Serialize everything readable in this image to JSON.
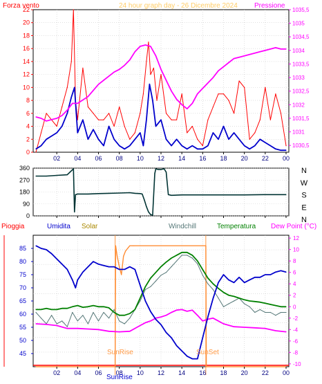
{
  "header": {
    "wind_label": "Forza vento",
    "title": "24 hour graph day - 26 Dicembre 2024",
    "pressure_label": "Pressione"
  },
  "bottom_header": {
    "rain": "Pioggia",
    "humidity": "Umidita",
    "solar": "Solar",
    "windchill": "Windchill",
    "temperature": "Temperatura",
    "dewpoint": "Dew Point (°C)"
  },
  "markers": {
    "sunrise": "SunRise",
    "sunset": "SunSet",
    "sunrise_tick": "SunRise"
  },
  "colors": {
    "wind": "#ff0000",
    "gust": "#0000cc",
    "pressure": "#ff00ff",
    "direction": "#003333",
    "humidity": "#0000cc",
    "solar": "#ff8c33",
    "windchill": "#557777",
    "temperature": "#008000",
    "dewpoint": "#ff00ff",
    "rain": "#ff0000"
  },
  "chart_data": [
    {
      "type": "line",
      "title": "24 hour graph day - 26 Dicembre 2024",
      "x_ticks": [
        "02",
        "04",
        "06",
        "08",
        "10",
        "12",
        "14",
        "16",
        "18",
        "20",
        "22",
        "00"
      ],
      "left_axis": {
        "label": "Forza vento",
        "ylim": [
          0,
          22
        ],
        "ticks": [
          "0",
          "2",
          "4",
          "6",
          "8",
          "10",
          "12",
          "14",
          "16",
          "18",
          "20",
          "22"
        ]
      },
      "right_axis": {
        "label": "Pressione",
        "ylim": [
          1030.25,
          1035.5
        ],
        "ticks": [
          "1030,5",
          "1031",
          "1031,5",
          "1032",
          "1032,5",
          "1033",
          "1033,5",
          "1034",
          "1034,5",
          "1035",
          "1035,5"
        ]
      },
      "series": [
        {
          "key": "wind",
          "axis": "left",
          "x": [
            0,
            0.5,
            1,
            1.5,
            2,
            2.5,
            3,
            3.4,
            3.6,
            3.8,
            4,
            4.5,
            5,
            5.5,
            6,
            6.5,
            7,
            7.5,
            8,
            8.5,
            9,
            9.5,
            10,
            10.3,
            10.6,
            10.8,
            11,
            11.3,
            11.6,
            12,
            12.5,
            13,
            13.5,
            14,
            14.5,
            15,
            15.5,
            16,
            16.5,
            17,
            17.5,
            18,
            18.5,
            19,
            19.5,
            20,
            20.5,
            21,
            21.5,
            22,
            22.5,
            23,
            23.5,
            24
          ],
          "values": [
            0,
            3,
            6,
            5,
            4,
            7,
            10,
            14,
            22,
            8,
            5,
            13,
            7,
            6,
            5,
            5,
            6,
            4,
            7,
            4,
            2,
            3,
            6,
            9,
            14,
            17,
            12,
            13,
            8,
            12,
            6,
            5,
            5,
            9,
            3,
            4,
            2,
            1,
            5,
            7,
            9,
            9,
            8,
            6,
            11,
            10,
            2,
            3,
            5,
            10,
            5,
            9,
            6,
            1
          ]
        },
        {
          "key": "gust",
          "axis": "left",
          "x": [
            0,
            0.5,
            1,
            1.5,
            2,
            2.5,
            3,
            3.4,
            3.7,
            4,
            4.5,
            5,
            5.5,
            6,
            6.5,
            7,
            7.5,
            8,
            8.5,
            9,
            9.5,
            10,
            10.3,
            10.6,
            10.9,
            11.2,
            11.5,
            12,
            12.5,
            13,
            13.5,
            14,
            14.5,
            15,
            15.5,
            16,
            16.5,
            17,
            17.5,
            18,
            18.5,
            19,
            19.5,
            20,
            20.5,
            21,
            21.5,
            22,
            22.5,
            23,
            23.5,
            24
          ],
          "values": [
            0.5,
            1,
            2,
            2.5,
            3,
            4,
            6,
            8.5,
            10,
            3,
            5,
            2,
            3.5,
            2,
            1,
            4,
            2,
            1,
            0.5,
            1,
            2,
            3,
            1,
            5,
            10.5,
            8,
            4,
            5,
            2,
            1,
            2,
            1,
            0.5,
            1,
            0.5,
            0.5,
            1,
            3,
            2,
            4,
            2,
            3,
            2,
            1,
            0.5,
            1,
            2,
            1.5,
            1,
            0.5,
            0.3,
            0.3
          ]
        },
        {
          "key": "pressure",
          "axis": "right",
          "x": [
            0,
            0.5,
            1,
            1.5,
            2,
            2.5,
            3,
            3.5,
            4,
            5,
            6,
            6.5,
            7,
            7.5,
            8,
            8.5,
            9,
            9.5,
            10,
            10.5,
            11,
            11.5,
            12,
            12.5,
            13,
            13.5,
            14,
            14.5,
            15,
            15.5,
            16,
            16.5,
            17,
            17.5,
            18,
            18.5,
            19,
            19.5,
            20,
            20.5,
            21,
            21.5,
            22,
            22.5,
            23,
            23.5,
            24
          ],
          "values": [
            1031.55,
            1031.5,
            1031.4,
            1031.45,
            1031.5,
            1031.6,
            1031.8,
            1032.05,
            1032.05,
            1032.3,
            1032.75,
            1032.9,
            1033.05,
            1033.2,
            1033.3,
            1033.45,
            1033.65,
            1033.95,
            1034.15,
            1034.2,
            1034.15,
            1033.8,
            1033.3,
            1032.9,
            1032.5,
            1032.2,
            1032.0,
            1031.85,
            1032.05,
            1032.4,
            1032.6,
            1032.8,
            1033.0,
            1033.25,
            1033.4,
            1033.55,
            1033.7,
            1033.75,
            1033.8,
            1033.85,
            1033.9,
            1033.95,
            1034.0,
            1034.05,
            1034.1,
            1034.05,
            1034.05
          ]
        }
      ]
    },
    {
      "type": "line",
      "title": "",
      "ylim": [
        0,
        360
      ],
      "y_ticks": [
        "0",
        "90",
        "180",
        "270",
        "360"
      ],
      "direction_labels": [
        "N",
        "W",
        "S",
        "E",
        "N"
      ],
      "series": [
        {
          "key": "direction",
          "x": [
            0,
            1,
            2,
            3,
            3.6,
            3.7,
            3.8,
            4,
            5,
            6,
            7,
            8,
            9,
            9.5,
            10,
            10.2,
            10.4,
            10.6,
            10.8,
            11,
            11.2,
            11.4,
            11.5,
            11.7,
            12,
            12.3,
            12.5,
            12.7,
            13,
            14,
            16,
            18,
            20,
            22,
            24
          ],
          "values": [
            300,
            300,
            305,
            310,
            355,
            30,
            160,
            165,
            165,
            168,
            170,
            172,
            175,
            170,
            168,
            165,
            120,
            70,
            30,
            10,
            5,
            320,
            355,
            350,
            350,
            355,
            330,
            160,
            155,
            158,
            158,
            158,
            158,
            160,
            160
          ]
        }
      ]
    },
    {
      "type": "line",
      "title": "",
      "x_ticks": [
        "02",
        "04",
        "06",
        "08",
        "10",
        "12",
        "14",
        "16",
        "18",
        "20",
        "22",
        "00"
      ],
      "left_axis": {
        "label": "Umidita",
        "ylim": [
          40,
          90
        ],
        "ticks": [
          "45",
          "50",
          "55",
          "60",
          "65",
          "70",
          "75",
          "80",
          "85"
        ]
      },
      "right_axis": {
        "label": "Dew Point (°C)",
        "ylim": [
          -10.5,
          12.5
        ],
        "ticks": [
          "-10",
          "-8",
          "-6",
          "-4",
          "-2",
          "0",
          "2",
          "4",
          "6",
          "8",
          "10",
          "12"
        ]
      },
      "series": [
        {
          "key": "humidity",
          "axis": "left",
          "x": [
            0,
            0.5,
            1,
            1.5,
            2,
            2.5,
            3,
            3.5,
            3.8,
            4,
            4.5,
            5,
            5.5,
            6,
            6.5,
            7,
            7.5,
            8,
            8.5,
            9,
            9.5,
            10,
            10.5,
            11,
            11.5,
            12,
            12.5,
            13,
            13.5,
            14,
            14.5,
            15,
            15.5,
            16,
            16.5,
            17,
            17.5,
            18,
            18.5,
            19,
            19.5,
            20,
            20.5,
            21,
            21.5,
            22,
            22.5,
            23,
            23.5,
            24
          ],
          "values": [
            86,
            85,
            84.5,
            83,
            81,
            79,
            77,
            73,
            70,
            73,
            76,
            78,
            80,
            79,
            78.5,
            78,
            78,
            77,
            77,
            78,
            77,
            71,
            65,
            61,
            58,
            56,
            53,
            51,
            48,
            46,
            44,
            43,
            43,
            51,
            59,
            66,
            72,
            75,
            73,
            72,
            74,
            72,
            73,
            74,
            74,
            75,
            75,
            76,
            76.5,
            76
          ]
        },
        {
          "key": "solar",
          "axis": "left",
          "x": [
            0,
            7.6,
            7.65,
            7.8,
            8,
            8.2,
            8.4,
            8.6,
            9,
            9.3,
            9.4,
            10,
            12,
            14,
            16,
            16.3,
            16.35,
            24
          ],
          "values": [
            40,
            40,
            86,
            82,
            78,
            75,
            82,
            84,
            86,
            86,
            86,
            86,
            86,
            86,
            86,
            86,
            40,
            40
          ]
        },
        {
          "key": "windchill",
          "axis": "right",
          "x": [
            0,
            0.5,
            1,
            1.5,
            2,
            2.5,
            3,
            3.5,
            4,
            4.5,
            5,
            5.5,
            6,
            6.5,
            7,
            7.5,
            8,
            8.5,
            9,
            9.5,
            10,
            10.5,
            11,
            11.5,
            12,
            12.5,
            13,
            13.5,
            14,
            14.5,
            15,
            15.5,
            16,
            16.5,
            17,
            17.5,
            18,
            18.5,
            19,
            19.5,
            20,
            20.5,
            21,
            21.5,
            22,
            22.5,
            23,
            23.5,
            24
          ],
          "values": [
            -1,
            -2,
            -3,
            -1.5,
            -3,
            -2.5,
            -3.5,
            -1,
            -2.5,
            -1.5,
            -3,
            -1,
            -2.5,
            -1,
            -2,
            -0.5,
            -2.5,
            -3,
            -2,
            -0.5,
            1,
            3,
            3.5,
            4.5,
            5.5,
            6,
            7,
            8,
            9,
            9,
            8.5,
            7.5,
            5.5,
            4,
            3,
            1.5,
            0,
            0.5,
            1,
            1.5,
            0.5,
            0,
            -1,
            -0.5,
            -1,
            -1,
            -1.5,
            -1,
            -1
          ]
        },
        {
          "key": "temperature",
          "axis": "right",
          "x": [
            0,
            0.5,
            1,
            1.5,
            2,
            2.5,
            3,
            3.5,
            4,
            4.5,
            5,
            5.5,
            6,
            6.5,
            7,
            7.5,
            8,
            8.5,
            9,
            9.5,
            10,
            10.5,
            11,
            11.5,
            12,
            12.5,
            13,
            13.5,
            14,
            14.5,
            15,
            15.5,
            16,
            16.5,
            17,
            17.5,
            18,
            18.5,
            19,
            19.5,
            20,
            20.5,
            21,
            21.5,
            22,
            22.5,
            23,
            23.5,
            24
          ],
          "values": [
            -0.5,
            -0.5,
            -0.3,
            -0.5,
            -0.5,
            -0.3,
            -0.3,
            0,
            0.2,
            -0.1,
            0,
            0.2,
            0,
            0,
            -0.2,
            -1,
            -1.5,
            -1.5,
            -1.2,
            -0.5,
            1.5,
            3.5,
            5,
            6,
            7,
            7.8,
            8.5,
            9,
            9.5,
            9.5,
            9,
            8,
            6.5,
            5,
            4,
            3.2,
            2.5,
            2,
            1.8,
            1.5,
            1.2,
            1,
            0.9,
            0.8,
            0.6,
            0.4,
            0.2,
            0,
            0
          ]
        },
        {
          "key": "dewpoint",
          "axis": "right",
          "x": [
            0,
            1,
            2,
            3,
            4,
            5,
            6,
            7,
            8,
            9,
            10,
            10.5,
            11,
            11.5,
            12,
            12.5,
            13,
            13.5,
            14,
            14.5,
            15,
            15.5,
            16,
            16.5,
            17,
            17.5,
            18,
            19,
            20,
            21,
            22,
            23,
            24
          ],
          "values": [
            -3,
            -3.1,
            -3.3,
            -3.8,
            -3.8,
            -3.9,
            -4.0,
            -4.3,
            -4.4,
            -4.3,
            -3.3,
            -2.8,
            -2.5,
            -2,
            -1.8,
            -1.5,
            -1,
            -0.6,
            -0.5,
            -0.8,
            -0.6,
            -1.5,
            -2.5,
            -2.2,
            -2.0,
            -2.5,
            -3,
            -3.5,
            -3.6,
            -3.7,
            -3.8,
            -4.2,
            -4.4
          ]
        }
      ]
    }
  ]
}
